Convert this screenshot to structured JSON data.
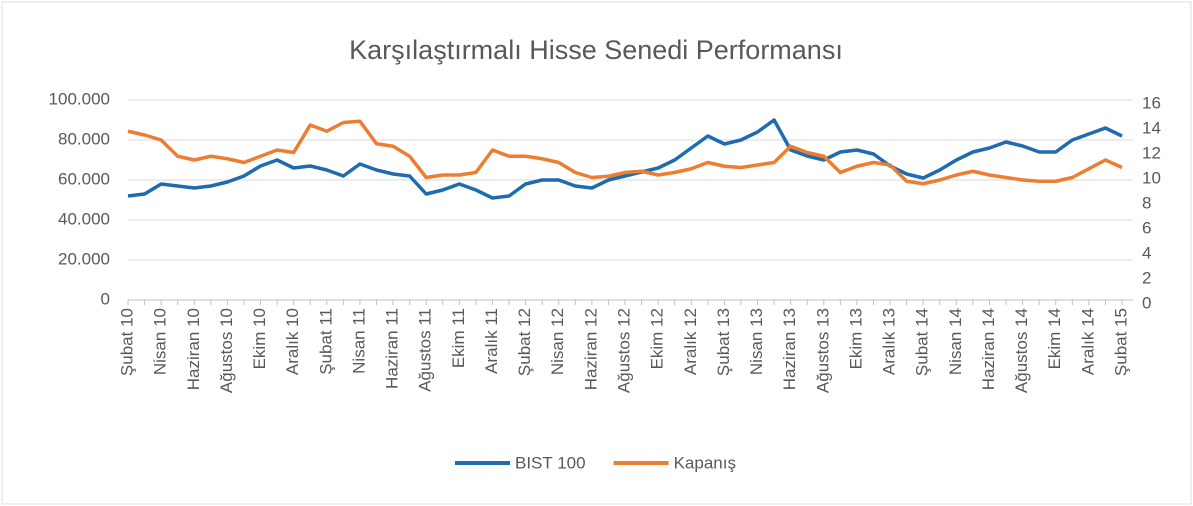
{
  "chart_data": {
    "type": "line",
    "title": "Karşılaştırmalı Hisse Senedi Performansı",
    "categories": [
      "Şubat 10",
      null,
      "Nisan 10",
      null,
      "Haziran 10",
      null,
      "Ağustos 10",
      null,
      "Ekim 10",
      null,
      "Aralık 10",
      null,
      "Şubat 11",
      null,
      "Nisan 11",
      null,
      "Haziran 11",
      null,
      "Ağustos 11",
      null,
      "Ekim 11",
      null,
      "Aralık 11",
      null,
      "Şubat 12",
      null,
      "Nisan 12",
      null,
      "Haziran 12",
      null,
      "Ağustos 12",
      null,
      "Ekim 12",
      null,
      "Aralık 12",
      null,
      "Şubat 13",
      null,
      "Nisan 13",
      null,
      "Haziran 13",
      null,
      "Ağustos 13",
      null,
      "Ekim 13",
      null,
      "Aralık 13",
      null,
      "Şubat 14",
      null,
      "Nisan 14",
      null,
      "Haziran 14",
      null,
      "Ağustos 14",
      null,
      "Ekim 14",
      null,
      "Aralık 14",
      null,
      "Şubat 15"
    ],
    "series": [
      {
        "name": "BIST 100",
        "color": "#1f6bb0",
        "values": [
          52000,
          53000,
          58000,
          57000,
          56000,
          57000,
          59000,
          62000,
          67000,
          70000,
          66000,
          67000,
          65000,
          62000,
          68000,
          65000,
          63000,
          62000,
          53000,
          55000,
          58000,
          55000,
          51000,
          52000,
          58000,
          60000,
          60000,
          57000,
          56000,
          60000,
          62000,
          64000,
          66000,
          70000,
          76000,
          82000,
          78000,
          80000,
          84000,
          90000,
          75000,
          72000,
          70000,
          74000,
          75000,
          73000,
          67000,
          63000,
          61000,
          65000,
          70000,
          74000,
          76000,
          79000,
          77000,
          74000,
          74000,
          80000,
          83000,
          86000,
          82000
        ]
      },
      {
        "name": "Kapanış",
        "color": "#ed7d31",
        "axis": "y2",
        "values": [
          13.5,
          13.2,
          12.8,
          11.5,
          11.2,
          11.5,
          11.3,
          11.0,
          11.5,
          12.0,
          11.8,
          14.0,
          13.5,
          14.2,
          14.3,
          12.5,
          12.3,
          11.5,
          9.8,
          10.0,
          10.0,
          10.2,
          12.0,
          11.5,
          11.5,
          11.3,
          11.0,
          10.2,
          9.8,
          9.9,
          10.2,
          10.3,
          10.0,
          10.2,
          10.5,
          11.0,
          10.7,
          10.6,
          10.8,
          11.0,
          12.3,
          11.8,
          11.5,
          10.2,
          10.7,
          11.0,
          10.8,
          9.5,
          9.3,
          9.6,
          10.0,
          10.3,
          10.0,
          9.8,
          9.6,
          9.5,
          9.5,
          9.8,
          10.5,
          11.2,
          10.6
        ]
      }
    ],
    "ylim": [
      0,
      100000
    ],
    "yticks": [
      0,
      {
        "value": 20000,
        "label": "20.000"
      },
      {
        "value": 40000,
        "label": "40.000"
      },
      {
        "value": 60000,
        "label": "60.000"
      },
      {
        "value": 80000,
        "label": "80.000"
      },
      {
        "value": 100000,
        "label": "100.000"
      }
    ],
    "y2lim": [
      0,
      16
    ],
    "y2ticks": [
      0,
      2,
      4,
      6,
      8,
      10,
      12,
      14,
      16
    ],
    "grid": true,
    "legend": "bottom"
  }
}
